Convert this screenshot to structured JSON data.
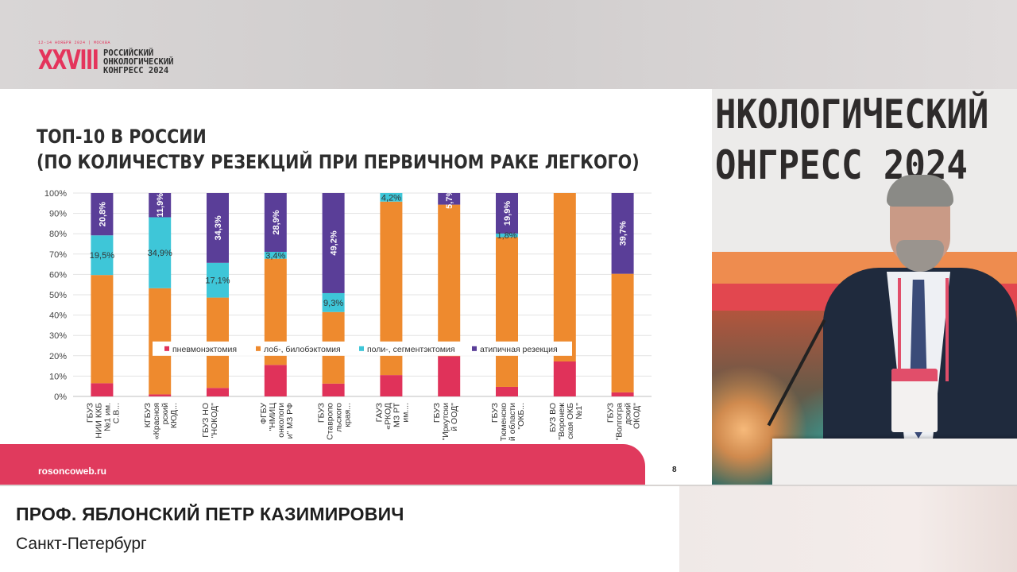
{
  "logo": {
    "dates": "12-14 НОЯБРЯ 2024 | МОСКВА",
    "number": "XXVIII",
    "lines": [
      "РОССИЙСКИЙ",
      "ОНКОЛОГИЧЕСКИЙ",
      "КОНГРЕСС 2024"
    ]
  },
  "slide": {
    "title_line1": "ТОП-10 В РОССИИ",
    "title_line2": "(ПО КОЛИЧЕСТВУ РЕЗЕКЦИЙ ПРИ ПЕРВИЧНОМ РАКЕ ЛЕГКОГО)",
    "url": "rosoncoweb.ru",
    "page_number": "8"
  },
  "chart_data": {
    "type": "bar",
    "stacked": true,
    "percent": true,
    "ylim": [
      0,
      100
    ],
    "yticks": [
      "0%",
      "10%",
      "20%",
      "30%",
      "40%",
      "50%",
      "60%",
      "70%",
      "80%",
      "90%",
      "100%"
    ],
    "grid": true,
    "legend_position": "inside-bottom",
    "categories": [
      [
        "ГБУЗ",
        "НИИ ККБ",
        "№1 им.",
        "С.В..."
      ],
      [
        "КГБУЗ",
        "«Красноя",
        "рский",
        "КЮД..."
      ],
      [
        "ГБУЗ НО",
        "\"НОКОД\""
      ],
      [
        "ФГБУ",
        "\"НМИЦ",
        "онкологи",
        "и\" МЗ РФ"
      ],
      [
        "ГБУЗ",
        "Ставропо",
        "льского",
        "края..."
      ],
      [
        "ГАУЗ",
        "«РКОД",
        "МЗ РТ",
        "им...."
      ],
      [
        "ГБУЗ",
        "\"Иркутски",
        "й ООД\""
      ],
      [
        "ГБУЗ",
        "Тюменско",
        "й области",
        "\"ОКБ..."
      ],
      [
        "БУЗ ВО",
        "\"Воронеж",
        "ская ОКБ",
        "№1\""
      ],
      [
        "ГБУЗ",
        "\"Волгогра",
        "дский",
        "ОКОД\""
      ]
    ],
    "series": [
      {
        "name": "пневмонэктомия",
        "color": "#e0325a",
        "values": [
          6.5,
          1,
          4.2,
          15.5,
          6.3,
          10.5,
          19.8,
          4.7,
          17.2,
          2
        ]
      },
      {
        "name": "лоб-, билобэктомия",
        "color": "#ee8a2e",
        "values": [
          53.2,
          52.2,
          44.4,
          52.2,
          35.2,
          85.3,
          74.5,
          73.6,
          82.8,
          58.3
        ]
      },
      {
        "name": "поли-, сегментэктомия",
        "color": "#3ec6d8",
        "values": [
          19.5,
          34.9,
          17.1,
          3.4,
          9.3,
          4.2,
          0,
          1.8,
          0,
          0
        ]
      },
      {
        "name": "атипичная резекция",
        "color": "#5a3e98",
        "values": [
          20.8,
          11.9,
          34.3,
          28.9,
          49.2,
          0,
          5.7,
          19.9,
          0,
          39.7
        ]
      }
    ],
    "data_labels": [
      {
        "category": 0,
        "series": 3,
        "text": "20,8%",
        "rotated": true
      },
      {
        "category": 0,
        "series": 2,
        "text": "19,5%",
        "rotated": false
      },
      {
        "category": 1,
        "series": 3,
        "text": "11,9%",
        "rotated": true
      },
      {
        "category": 1,
        "series": 2,
        "text": "34,9%",
        "rotated": false
      },
      {
        "category": 2,
        "series": 3,
        "text": "34,3%",
        "rotated": true
      },
      {
        "category": 2,
        "series": 2,
        "text": "17,1%",
        "rotated": false
      },
      {
        "category": 3,
        "series": 3,
        "text": "28,9%",
        "rotated": true
      },
      {
        "category": 3,
        "series": 2,
        "text": "3,4%",
        "rotated": false
      },
      {
        "category": 4,
        "series": 3,
        "text": "49,2%",
        "rotated": true
      },
      {
        "category": 4,
        "series": 2,
        "text": "9,3%",
        "rotated": false
      },
      {
        "category": 5,
        "series": 2,
        "text": "4,2%",
        "rotated": false
      },
      {
        "category": 6,
        "series": 3,
        "text": "5,7%",
        "rotated": true
      },
      {
        "category": 7,
        "series": 3,
        "text": "19,9%",
        "rotated": true
      },
      {
        "category": 7,
        "series": 2,
        "text": "1,8%",
        "rotated": false
      },
      {
        "category": 9,
        "series": 3,
        "text": "39,7%",
        "rotated": true
      }
    ]
  },
  "video": {
    "banner_line1": "НКОЛОГИЧЕСКИЙ",
    "banner_line2": "ОНГРЕСС 2024"
  },
  "caption": {
    "name": "ПРОФ. ЯБЛОНСКИЙ ПЕТР КАЗИМИРОВИЧ",
    "city": "Санкт-Петербург"
  }
}
